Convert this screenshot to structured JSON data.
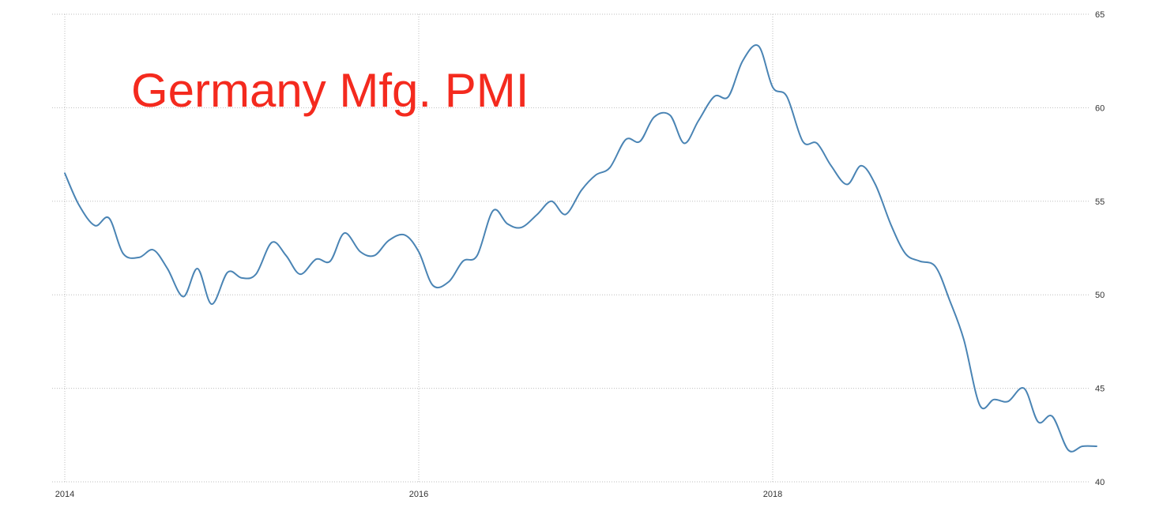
{
  "chart_data": {
    "type": "line",
    "title": "Germany Mfg. PMI",
    "title_color": "#f42a1e",
    "line_color": "#4a84b4",
    "grid_color": "#bdbdbd",
    "grid": true,
    "xlabel": "",
    "ylabel": "",
    "y_axis_side": "right",
    "ylim": [
      40,
      65
    ],
    "y_ticks": [
      40,
      45,
      50,
      55,
      60,
      65
    ],
    "x_ticks": [
      {
        "value": 2014.0,
        "label": "2014"
      },
      {
        "value": 2016.0,
        "label": "2016"
      },
      {
        "value": 2018.0,
        "label": "2018"
      }
    ],
    "xlim": [
      2014.0,
      2019.9
    ],
    "series": [
      {
        "x": [
          2014.0,
          2014.08,
          2014.17,
          2014.25,
          2014.33,
          2014.42,
          2014.5,
          2014.58,
          2014.67,
          2014.75,
          2014.83,
          2014.92,
          2015.0,
          2015.08,
          2015.17,
          2015.25,
          2015.33,
          2015.42,
          2015.5,
          2015.58,
          2015.67,
          2015.75,
          2015.83,
          2015.92,
          2016.0,
          2016.08,
          2016.17,
          2016.25,
          2016.33,
          2016.42,
          2016.5,
          2016.58,
          2016.67,
          2016.75,
          2016.83,
          2016.92,
          2017.0,
          2017.08,
          2017.17,
          2017.25,
          2017.33,
          2017.42,
          2017.5,
          2017.58,
          2017.67,
          2017.75,
          2017.83,
          2017.92,
          2018.0,
          2018.08,
          2018.17,
          2018.25,
          2018.33,
          2018.42,
          2018.5,
          2018.58,
          2018.67,
          2018.75,
          2018.83,
          2018.92,
          2019.0,
          2019.08,
          2019.17,
          2019.25,
          2019.33,
          2019.42,
          2019.5,
          2019.58,
          2019.67,
          2019.75,
          2019.83
        ],
        "values": [
          56.5,
          54.8,
          53.7,
          54.1,
          52.2,
          52.0,
          52.4,
          51.4,
          49.9,
          51.4,
          49.5,
          51.2,
          50.9,
          51.1,
          52.8,
          52.1,
          51.1,
          51.9,
          51.8,
          53.3,
          52.3,
          52.1,
          52.9,
          53.2,
          52.3,
          50.5,
          50.7,
          51.8,
          52.1,
          54.5,
          53.8,
          53.6,
          54.3,
          55.0,
          54.3,
          55.6,
          56.4,
          56.8,
          58.3,
          58.2,
          59.5,
          59.6,
          58.1,
          59.3,
          60.6,
          60.6,
          62.5,
          63.3,
          61.1,
          60.6,
          58.2,
          58.1,
          56.9,
          55.9,
          56.9,
          55.9,
          53.7,
          52.2,
          51.8,
          51.5,
          49.7,
          47.6,
          44.1,
          44.4,
          44.3,
          45.0,
          43.2,
          43.5,
          41.7,
          41.9,
          41.9
        ]
      }
    ]
  }
}
